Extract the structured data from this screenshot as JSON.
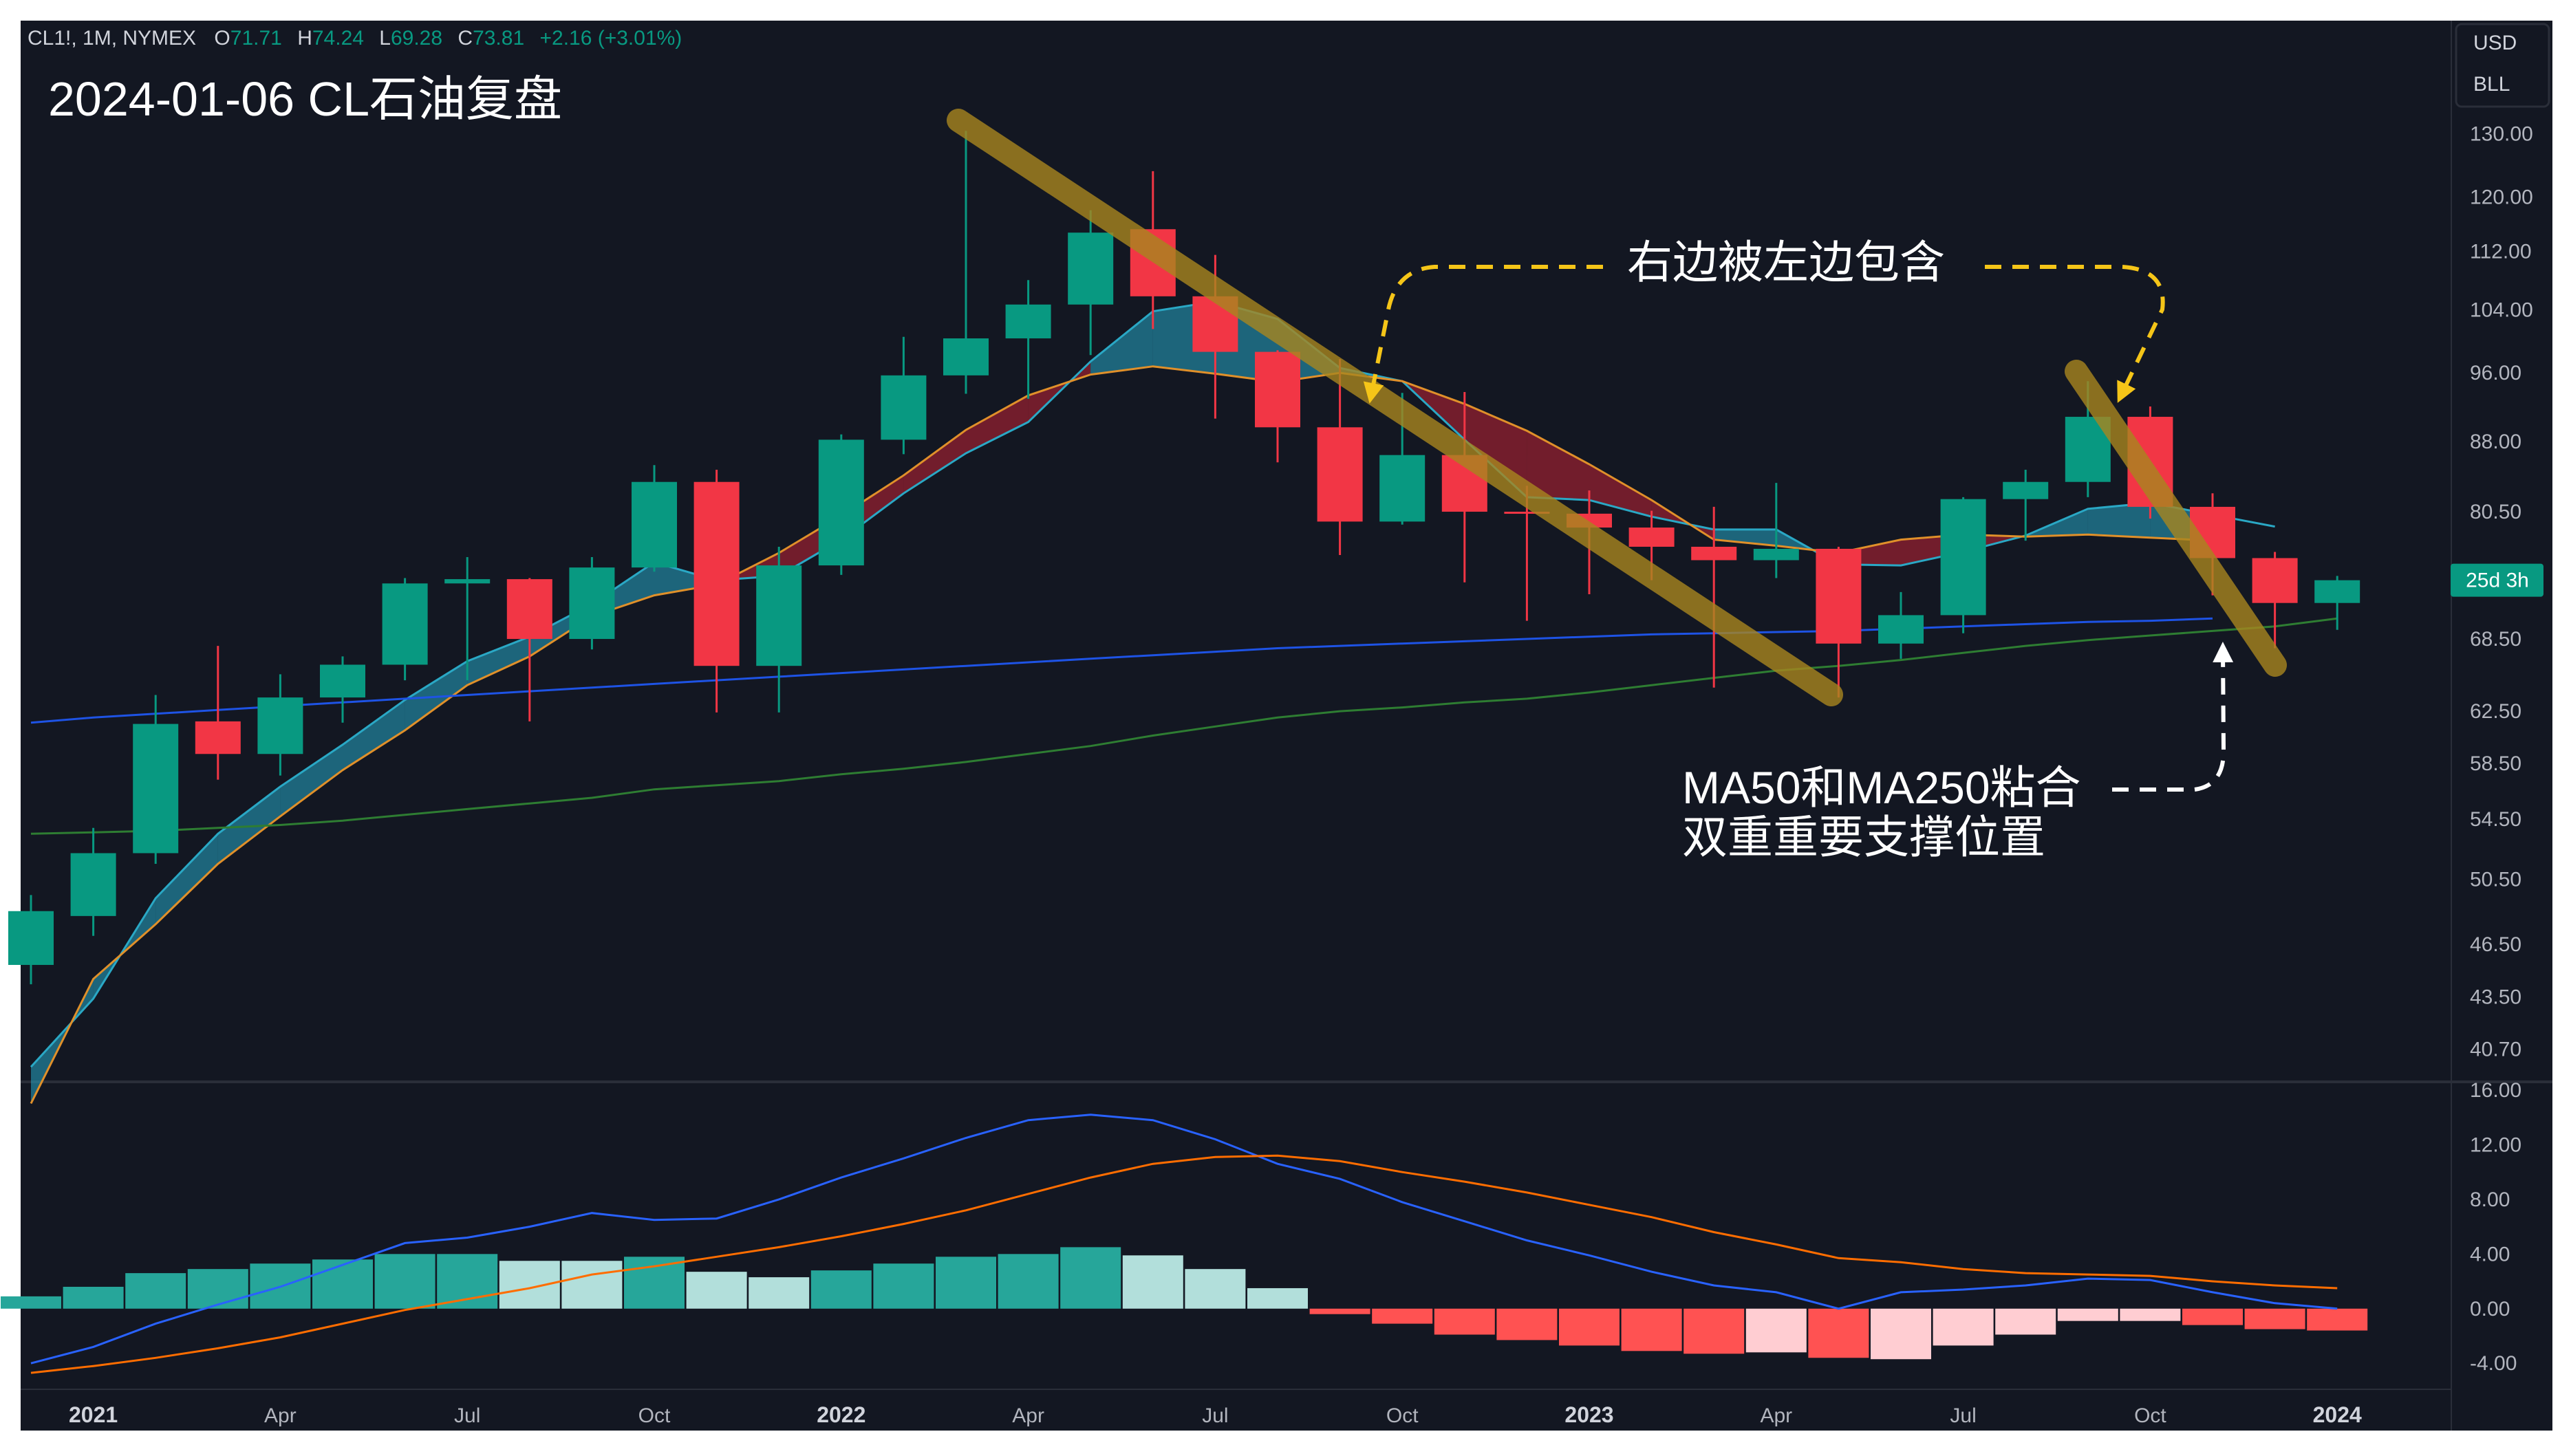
{
  "header": {
    "symbol": "CL1!, 1M, NYMEX",
    "open_label": "O",
    "open": "71.71",
    "high_label": "H",
    "high": "74.24",
    "low_label": "L",
    "low": "69.28",
    "close_label": "C",
    "close": "73.81",
    "change": "+2.16 (+3.01%)",
    "title": "2024-01-06 CL石油复盘"
  },
  "scale_box": {
    "currency": "USD",
    "unit": "BLL"
  },
  "countdown_badge": "25d 3h",
  "annotations": {
    "top": "右边被左边包含",
    "bottom_line1": "MA50和MA250粘合",
    "bottom_line2": "双重重要支撑位置"
  },
  "colors": {
    "background": "#131722",
    "up": "#089981",
    "down": "#f23645",
    "trendline": "#a8861f",
    "arrow": "#f5c518",
    "ma50": "#1e53e5",
    "ma250": "#2e7d32",
    "macd_line": "#2962ff",
    "signal_line": "#ff6d00"
  },
  "chart_data": [
    {
      "type": "candlestick",
      "y_scale": "log",
      "ylim": [
        39.5,
        134
      ],
      "y_ticks": [
        "130.00",
        "120.00",
        "112.00",
        "104.00",
        "96.00",
        "88.00",
        "80.50",
        "68.50",
        "62.50",
        "58.50",
        "54.50",
        "50.50",
        "46.50",
        "43.50",
        "40.70"
      ],
      "x_ticks": [
        {
          "index": 1,
          "label": "2021",
          "bold": true
        },
        {
          "index": 4,
          "label": "Apr"
        },
        {
          "index": 7,
          "label": "Jul"
        },
        {
          "index": 10,
          "label": "Oct"
        },
        {
          "index": 13,
          "label": "2022",
          "bold": true
        },
        {
          "index": 16,
          "label": "Apr"
        },
        {
          "index": 19,
          "label": "Jul"
        },
        {
          "index": 22,
          "label": "Oct"
        },
        {
          "index": 25,
          "label": "2023",
          "bold": true
        },
        {
          "index": 28,
          "label": "Apr"
        },
        {
          "index": 31,
          "label": "Jul"
        },
        {
          "index": 34,
          "label": "Oct"
        },
        {
          "index": 37,
          "label": "2024",
          "bold": true
        }
      ],
      "candles": [
        {
          "t": "2020-12",
          "o": 45.3,
          "h": 49.5,
          "l": 44.2,
          "c": 48.5
        },
        {
          "t": "2021-01",
          "o": 48.2,
          "h": 53.9,
          "l": 47.0,
          "c": 52.2
        },
        {
          "t": "2021-02",
          "o": 52.2,
          "h": 63.8,
          "l": 51.5,
          "c": 61.5
        },
        {
          "t": "2021-03",
          "o": 61.7,
          "h": 67.9,
          "l": 57.3,
          "c": 59.2
        },
        {
          "t": "2021-04",
          "o": 59.2,
          "h": 65.5,
          "l": 57.6,
          "c": 63.6
        },
        {
          "t": "2021-05",
          "o": 63.6,
          "h": 67.0,
          "l": 61.6,
          "c": 66.3
        },
        {
          "t": "2021-06",
          "o": 66.3,
          "h": 74.0,
          "l": 65.0,
          "c": 73.5
        },
        {
          "t": "2021-07",
          "o": 73.5,
          "h": 76.0,
          "l": 65.0,
          "c": 73.9
        },
        {
          "t": "2021-08",
          "o": 73.9,
          "h": 74.0,
          "l": 61.7,
          "c": 68.5
        },
        {
          "t": "2021-09",
          "o": 68.5,
          "h": 76.0,
          "l": 67.6,
          "c": 75.0
        },
        {
          "t": "2021-10",
          "o": 75.0,
          "h": 85.4,
          "l": 74.6,
          "c": 83.6
        },
        {
          "t": "2021-11",
          "o": 83.6,
          "h": 84.9,
          "l": 62.4,
          "c": 66.2
        },
        {
          "t": "2021-12",
          "o": 66.2,
          "h": 77.0,
          "l": 62.4,
          "c": 75.2
        },
        {
          "t": "2022-01",
          "o": 75.2,
          "h": 88.8,
          "l": 74.3,
          "c": 88.2
        },
        {
          "t": "2022-02",
          "o": 88.2,
          "h": 100.5,
          "l": 86.6,
          "c": 95.7
        },
        {
          "t": "2022-03",
          "o": 95.7,
          "h": 130.5,
          "l": 93.5,
          "c": 100.3
        },
        {
          "t": "2022-04",
          "o": 100.3,
          "h": 108.0,
          "l": 92.9,
          "c": 104.7
        },
        {
          "t": "2022-05",
          "o": 104.7,
          "h": 118.0,
          "l": 98.2,
          "c": 114.7
        },
        {
          "t": "2022-06",
          "o": 115.2,
          "h": 124.0,
          "l": 101.5,
          "c": 105.8
        },
        {
          "t": "2022-07",
          "o": 105.8,
          "h": 111.5,
          "l": 90.6,
          "c": 98.6
        },
        {
          "t": "2022-08",
          "o": 98.6,
          "h": 98.8,
          "l": 85.7,
          "c": 89.6
        },
        {
          "t": "2022-09",
          "o": 89.6,
          "h": 97.7,
          "l": 76.2,
          "c": 79.5
        },
        {
          "t": "2022-10",
          "o": 79.5,
          "h": 93.6,
          "l": 79.2,
          "c": 86.5
        },
        {
          "t": "2022-11",
          "o": 86.5,
          "h": 93.7,
          "l": 73.6,
          "c": 80.5
        },
        {
          "t": "2022-12",
          "o": 80.5,
          "h": 83.2,
          "l": 70.1,
          "c": 80.3
        },
        {
          "t": "2023-01",
          "o": 80.3,
          "h": 82.7,
          "l": 72.5,
          "c": 78.9
        },
        {
          "t": "2023-02",
          "o": 78.9,
          "h": 80.6,
          "l": 73.8,
          "c": 77.0
        },
        {
          "t": "2023-03",
          "o": 77.0,
          "h": 81.0,
          "l": 64.4,
          "c": 75.7
        },
        {
          "t": "2023-04",
          "o": 75.7,
          "h": 83.5,
          "l": 74.0,
          "c": 76.8
        },
        {
          "t": "2023-05",
          "o": 76.8,
          "h": 77.0,
          "l": 63.6,
          "c": 68.1
        },
        {
          "t": "2023-06",
          "o": 68.1,
          "h": 72.7,
          "l": 66.8,
          "c": 70.6
        },
        {
          "t": "2023-07",
          "o": 70.6,
          "h": 82.0,
          "l": 69.0,
          "c": 81.8
        },
        {
          "t": "2023-08",
          "o": 81.8,
          "h": 84.9,
          "l": 77.6,
          "c": 83.6
        },
        {
          "t": "2023-09",
          "o": 83.6,
          "h": 95.0,
          "l": 82.0,
          "c": 90.8
        },
        {
          "t": "2023-10",
          "o": 90.8,
          "h": 92.0,
          "l": 79.8,
          "c": 81.0
        },
        {
          "t": "2023-11",
          "o": 81.0,
          "h": 82.4,
          "l": 72.4,
          "c": 75.9
        },
        {
          "t": "2023-12",
          "o": 75.9,
          "h": 76.5,
          "l": 67.7,
          "c": 71.7
        },
        {
          "t": "2024-01",
          "o": 71.7,
          "h": 74.2,
          "l": 69.3,
          "c": 73.8
        }
      ],
      "cloud": {
        "fast": [
          39.8,
          43.4,
          49.3,
          53.5,
          56.8,
          59.9,
          63.4,
          66.6,
          68.7,
          71.6,
          75.5,
          73.8,
          74.2,
          77.7,
          82.4,
          86.7,
          90.2,
          97.4,
          103.8,
          105.1,
          102.8,
          96.6,
          95.0,
          88.2,
          82.0,
          81.7,
          80.0,
          78.7,
          78.7,
          75.3,
          75.2,
          76.5,
          78.1,
          80.8,
          81.4,
          80.2,
          79.0
        ],
        "slow": [
          38.0,
          44.5,
          47.7,
          51.5,
          54.7,
          58.0,
          61.0,
          64.6,
          67.0,
          70.5,
          72.4,
          73.4,
          76.4,
          80.1,
          84.3,
          89.3,
          93.3,
          95.8,
          96.8,
          95.9,
          94.9,
          96.0,
          95.0,
          92.3,
          89.2,
          85.5,
          81.7,
          77.7,
          77.1,
          76.4,
          77.7,
          78.2,
          78.0,
          78.2,
          77.9,
          77.6
        ]
      },
      "ma50": [
        61.6,
        62.0,
        62.3,
        62.6,
        62.9,
        63.2,
        63.5,
        63.8,
        64.1,
        64.4,
        64.7,
        65.0,
        65.3,
        65.6,
        65.9,
        66.2,
        66.5,
        66.8,
        67.1,
        67.4,
        67.7,
        67.9,
        68.1,
        68.3,
        68.5,
        68.7,
        68.9,
        69.0,
        69.1,
        69.2,
        69.4,
        69.6,
        69.8,
        70.0,
        70.1,
        70.3
      ],
      "ma250": [
        53.5,
        53.6,
        53.7,
        53.9,
        54.1,
        54.4,
        54.8,
        55.2,
        55.6,
        56.0,
        56.6,
        56.9,
        57.2,
        57.7,
        58.1,
        58.6,
        59.2,
        59.8,
        60.6,
        61.3,
        62.0,
        62.5,
        62.8,
        63.2,
        63.5,
        64.0,
        64.6,
        65.2,
        65.8,
        66.2,
        66.7,
        67.3,
        67.9,
        68.4,
        68.8,
        69.2,
        69.6,
        70.3
      ]
    },
    {
      "type": "macd",
      "ylim": [
        -5.4,
        16.0
      ],
      "y_ticks": [
        "16.00",
        "12.00",
        "8.00",
        "4.00",
        "0.00",
        "-4.00"
      ],
      "histogram": [
        0.9,
        1.6,
        2.6,
        2.9,
        3.3,
        3.6,
        4.0,
        4.0,
        3.5,
        3.5,
        3.8,
        2.7,
        2.3,
        2.8,
        3.3,
        3.8,
        4.0,
        4.5,
        3.9,
        2.9,
        1.5,
        -0.4,
        -1.1,
        -1.9,
        -2.3,
        -2.7,
        -3.1,
        -3.3,
        -3.2,
        -3.6,
        -3.7,
        -2.7,
        -1.9,
        -0.9,
        -0.9,
        -1.2,
        -1.5,
        -1.6
      ],
      "hist_colors": [
        "#26a69a",
        "#26a69a",
        "#26a69a",
        "#26a69a",
        "#26a69a",
        "#26a69a",
        "#26a69a",
        "#26a69a",
        "#b2dfdb",
        "#b2dfdb",
        "#26a69a",
        "#b2dfdb",
        "#b2dfdb",
        "#26a69a",
        "#26a69a",
        "#26a69a",
        "#26a69a",
        "#26a69a",
        "#b2dfdb",
        "#b2dfdb",
        "#b2dfdb",
        "#ff5252",
        "#ff5252",
        "#ff5252",
        "#ff5252",
        "#ff5252",
        "#ff5252",
        "#ff5252",
        "#ffcdd2",
        "#ff5252",
        "#ffcdd2",
        "#ffcdd2",
        "#ffcdd2",
        "#ffcdd2",
        "#ffcdd2",
        "#ff5252",
        "#ff5252",
        "#ff5252"
      ],
      "macd": [
        -4.0,
        -2.8,
        -1.1,
        0.3,
        1.6,
        3.2,
        4.8,
        5.2,
        6.0,
        7.0,
        6.5,
        6.6,
        8.0,
        9.6,
        11.0,
        12.5,
        13.8,
        14.2,
        13.8,
        12.4,
        10.6,
        9.5,
        7.8,
        6.4,
        5.0,
        3.9,
        2.7,
        1.7,
        1.2,
        0.0,
        1.2,
        1.4,
        1.7,
        2.2,
        2.1,
        1.2,
        0.4,
        0.0
      ],
      "signal": [
        -4.7,
        -4.2,
        -3.6,
        -2.9,
        -2.1,
        -1.1,
        -0.1,
        0.7,
        1.5,
        2.5,
        3.1,
        3.8,
        4.5,
        5.3,
        6.2,
        7.2,
        8.4,
        9.6,
        10.6,
        11.1,
        11.2,
        10.8,
        10.0,
        9.3,
        8.5,
        7.6,
        6.7,
        5.6,
        4.7,
        3.7,
        3.4,
        2.9,
        2.6,
        2.5,
        2.4,
        2.0,
        1.7,
        1.5
      ]
    }
  ]
}
